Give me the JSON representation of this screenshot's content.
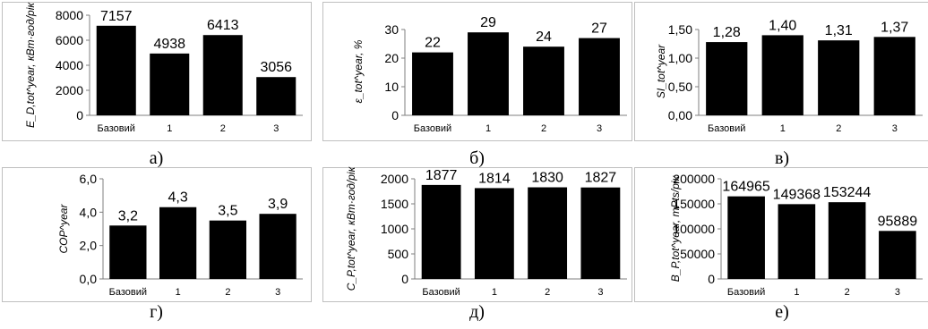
{
  "chart_data": [
    {
      "type": "bar",
      "categories": [
        "Базовий",
        "1",
        "2",
        "3"
      ],
      "values": [
        7157,
        4938,
        6413,
        3056
      ],
      "value_labels": [
        "7157",
        "4938",
        "6413",
        "3056"
      ],
      "ylabel": "E_D,tot^year, кВт·год/рік",
      "ylim": [
        0,
        8000
      ],
      "yticks": [
        "0",
        "2000",
        "4000",
        "6000",
        "8000"
      ],
      "caption": "а)",
      "grid": false,
      "bar_color": "#000000"
    },
    {
      "type": "bar",
      "categories": [
        "Базовий",
        "1",
        "2",
        "3"
      ],
      "values": [
        22,
        29,
        24,
        27
      ],
      "value_labels": [
        "22",
        "29",
        "24",
        "27"
      ],
      "ylabel": "ε_tot^year, %",
      "ylim": [
        0,
        30
      ],
      "yticks": [
        "0",
        "10",
        "20",
        "30"
      ],
      "caption": "б)",
      "grid": false,
      "bar_color": "#000000"
    },
    {
      "type": "bar",
      "categories": [
        "Базовий",
        "1",
        "2",
        "3"
      ],
      "values": [
        1.28,
        1.4,
        1.31,
        1.37
      ],
      "value_labels": [
        "1,28",
        "1,40",
        "1,31",
        "1,37"
      ],
      "ylabel": "SI_tot^year",
      "ylim": [
        0,
        1.5
      ],
      "yticks": [
        "0,00",
        "0,50",
        "1,00",
        "1,50"
      ],
      "caption": "в)",
      "grid": false,
      "bar_color": "#000000"
    },
    {
      "type": "bar",
      "categories": [
        "Базовий",
        "1",
        "2",
        "3"
      ],
      "values": [
        3.2,
        4.3,
        3.5,
        3.9
      ],
      "value_labels": [
        "3,2",
        "4,3",
        "3,5",
        "3,9"
      ],
      "ylabel": "COP^year",
      "ylim": [
        0,
        6
      ],
      "yticks": [
        "0,0",
        "2,0",
        "4,0",
        "6,0"
      ],
      "caption": "г)",
      "grid": false,
      "bar_color": "#000000"
    },
    {
      "type": "bar",
      "categories": [
        "Базовий",
        "1",
        "2",
        "3"
      ],
      "values": [
        1877,
        1814,
        1830,
        1827
      ],
      "value_labels": [
        "1877",
        "1814",
        "1830",
        "1827"
      ],
      "ylabel": "C_P,tot^year, кВт·год/рік",
      "ylim": [
        0,
        2000
      ],
      "yticks": [
        "0",
        "500",
        "1000",
        "1500",
        "2000"
      ],
      "caption": "д)",
      "grid": false,
      "bar_color": "#000000"
    },
    {
      "type": "bar",
      "categories": [
        "Базовий",
        "1",
        "2",
        "3"
      ],
      "values": [
        164965,
        149368,
        153244,
        95889
      ],
      "value_labels": [
        "164965",
        "149368",
        "153244",
        "95889"
      ],
      "ylabel": "B_P,tot^year, mPts/рік",
      "ylim": [
        0,
        200000
      ],
      "yticks": [
        "0",
        "50000",
        "100000",
        "150000",
        "200000"
      ],
      "caption": "е)",
      "grid": false,
      "bar_color": "#000000"
    }
  ]
}
